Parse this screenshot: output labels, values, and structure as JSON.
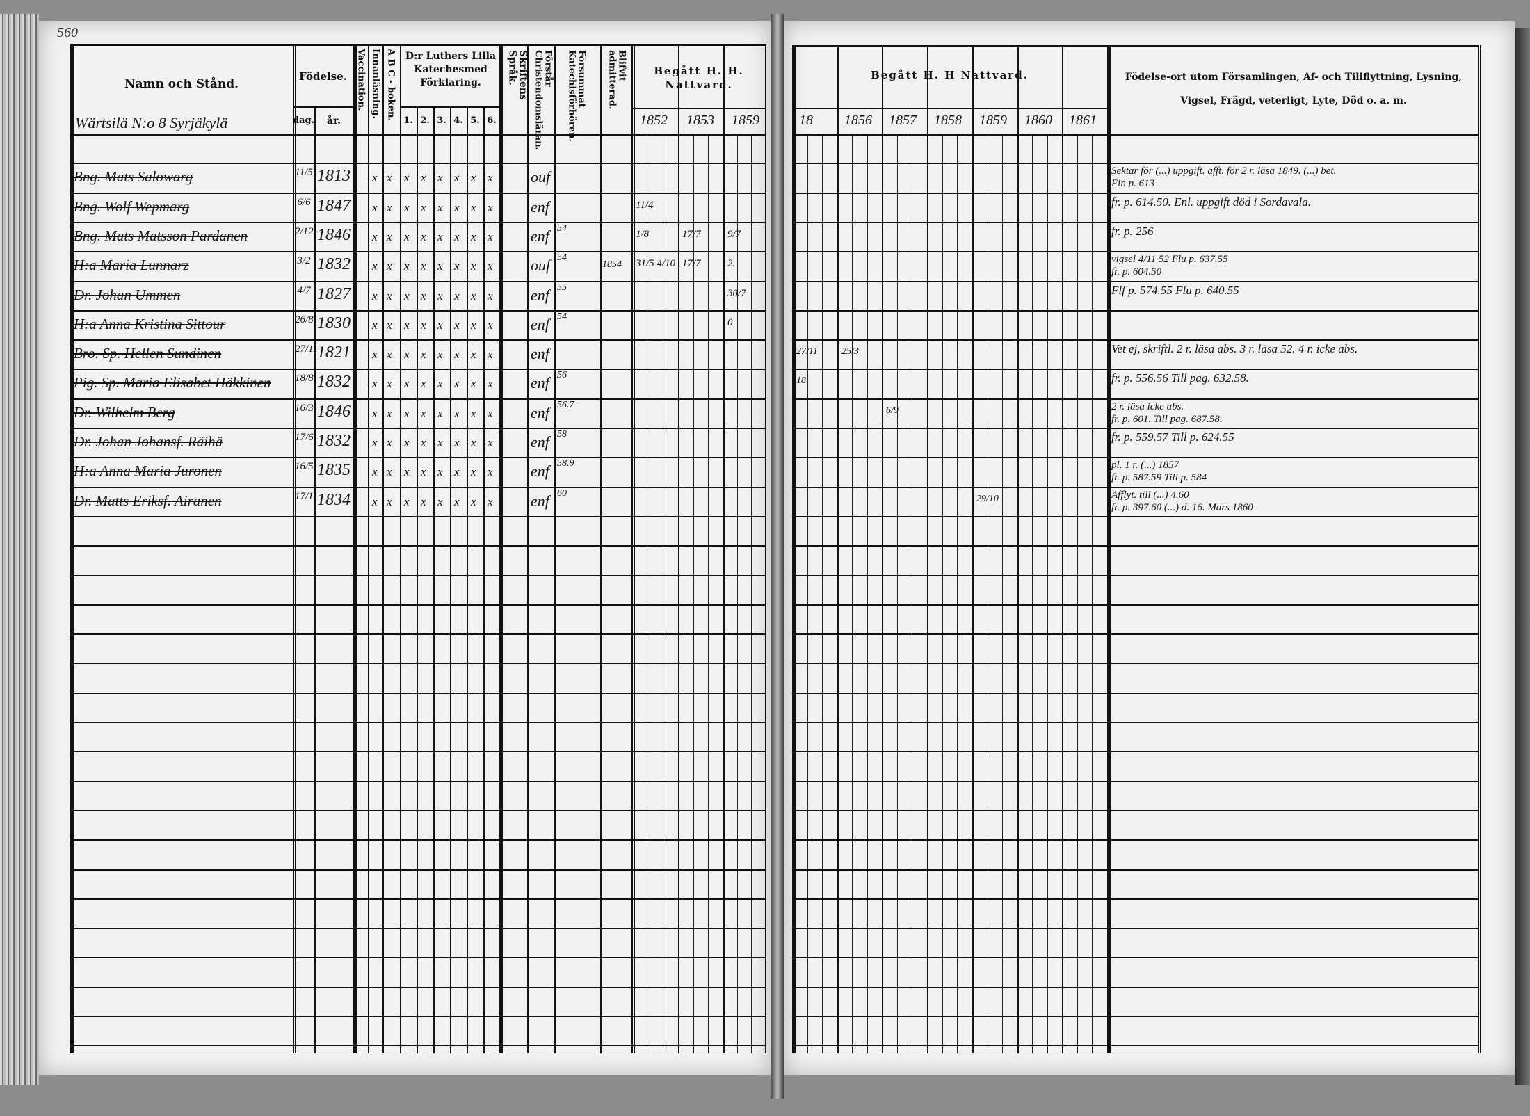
{
  "page_number": "560",
  "left_headers": {
    "name": "Namn och Stånd.",
    "birth": "Födelse.",
    "day": "dag.",
    "year": "år.",
    "vaccination": "Vaccination.",
    "reading": "Innanläsning.",
    "abc": "A B C - boken.",
    "catechism": "D:r Luthers Lilla Katechesmed Förklaring.",
    "catechism_parts": [
      "1.",
      "2.",
      "3.",
      "4.",
      "5.",
      "6."
    ],
    "scripture": "Skriftens Språk.",
    "understands": "Förstår Christendomsläran.",
    "missed": "Försummat Katechisförhören.",
    "admitted": "Blifvit admitterad.",
    "communion": "Begått H. H. Nattvard.",
    "communion_years": [
      "1852",
      "1853",
      "1859"
    ]
  },
  "right_headers": {
    "communion": "Begått H. H Nattvard.",
    "communion_years": [
      "18",
      "1856",
      "1857",
      "1858",
      "1859",
      "1860",
      "1861"
    ],
    "notes": "Födelse-ort utom Församlingen, Af- och Tillflyttning, Lysning,",
    "notes2": "Vigsel, Frägd, veterligt, Lyte, Död o. a. m."
  },
  "village": "Wärtsilä N:o 8 Syrjäkylä",
  "rows": [
    {
      "name": "Bng. Mats Salowarg",
      "day": "11/5",
      "year": "1813",
      "marks": [
        "",
        "x",
        "x",
        "x",
        "x",
        "x",
        "x",
        "x",
        "x"
      ],
      "understands": "ouf",
      "missed": "",
      "admitted": "",
      "begatt": [
        "",
        "",
        ""
      ],
      "right": [
        "",
        "",
        "",
        "",
        "",
        "",
        ""
      ],
      "notes": [
        "Sektar för (...) uppgift. afft. för 2 r. läsa 1849. (...) bet.",
        "Fin p. 613"
      ]
    },
    {
      "name": "Bng. Wolf Wepmarg",
      "day": "6/6",
      "year": "1847",
      "marks": [
        "",
        "x",
        "x",
        "x",
        "x",
        "x",
        "x",
        "x",
        "x"
      ],
      "understands": "enf",
      "missed": "",
      "admitted": "",
      "begatt": [
        "11/4",
        "",
        ""
      ],
      "right": [
        "",
        "",
        "",
        "",
        "",
        "",
        ""
      ],
      "notes": [
        "fr. p. 614.50. Enl. uppgift död i Sordavala."
      ]
    },
    {
      "name": "Bng. Mats Matsson Pardanen",
      "day": "2/12",
      "year": "1846",
      "marks": [
        "",
        "x",
        "x",
        "x",
        "x",
        "x",
        "x",
        "x",
        "x"
      ],
      "understands": "enf",
      "missed": "54",
      "admitted": "",
      "begatt": [
        "1/8",
        "17/7",
        "9/7"
      ],
      "right": [
        "",
        "",
        "",
        "",
        "",
        "",
        ""
      ],
      "notes": [
        "fr. p. 256"
      ]
    },
    {
      "name": "H:a Maria Lunnarz",
      "day": "3/2",
      "year": "1832",
      "marks": [
        "",
        "x",
        "x",
        "x",
        "x",
        "x",
        "x",
        "x",
        "x"
      ],
      "understands": "ouf",
      "missed": "54",
      "admitted": "1854",
      "begatt": [
        "31/5 4/10",
        "17/7",
        "2."
      ],
      "right": [
        "",
        "",
        "",
        "",
        "",
        "",
        ""
      ],
      "notes": [
        "vigsel 4/11 52 Flu p. 637.55",
        "fr. p. 604.50"
      ]
    },
    {
      "name": "Dr. Johan Ummen",
      "day": "4/7",
      "year": "1827",
      "marks": [
        "",
        "x",
        "x",
        "x",
        "x",
        "x",
        "x",
        "x",
        "x"
      ],
      "understands": "enf",
      "missed": "55",
      "admitted": "",
      "begatt": [
        "",
        "",
        "30/7"
      ],
      "right": [
        "",
        "",
        "",
        "",
        "",
        "",
        ""
      ],
      "notes": [
        "Flf p. 574.55 Flu p. 640.55"
      ]
    },
    {
      "name": "H:a Anna Kristina Sittour",
      "day": "26/8",
      "year": "1830",
      "marks": [
        "",
        "x",
        "x",
        "x",
        "x",
        "x",
        "x",
        "x",
        "x"
      ],
      "understands": "enf",
      "missed": "54",
      "admitted": "",
      "begatt": [
        "",
        "",
        "0"
      ],
      "right": [
        "",
        "",
        "",
        "",
        "",
        "",
        ""
      ],
      "notes": [
        ""
      ]
    },
    {
      "name": "Bro. Sp. Hellen Sundinen",
      "day": "27/11",
      "year": "1821",
      "marks": [
        "",
        "x",
        "x",
        "x",
        "x",
        "x",
        "x",
        "x",
        "x"
      ],
      "understands": "enf",
      "missed": "",
      "admitted": "",
      "begatt": [
        "",
        "",
        ""
      ],
      "right": [
        "27/11",
        "25/3",
        "",
        "",
        "",
        "",
        ""
      ],
      "notes": [
        "Vet ej, skriftl. 2 r. läsa abs. 3 r. läsa 52. 4 r. icke abs."
      ]
    },
    {
      "name": "Pig. Sp. Maria Elisabet Häkkinen",
      "day": "18/8",
      "year": "1832",
      "marks": [
        "",
        "x",
        "x",
        "x",
        "x",
        "x",
        "x",
        "x",
        "x"
      ],
      "understands": "enf",
      "missed": "56",
      "admitted": "",
      "begatt": [
        "",
        "",
        ""
      ],
      "right": [
        "18",
        "",
        "",
        "",
        "",
        "",
        ""
      ],
      "notes": [
        "fr. p. 556.56 Till pag. 632.58."
      ]
    },
    {
      "name": "Dr. Wilhelm Berg",
      "day": "16/3",
      "year": "1846",
      "marks": [
        "",
        "x",
        "x",
        "x",
        "x",
        "x",
        "x",
        "x",
        "x"
      ],
      "understands": "enf",
      "missed": "56.7",
      "admitted": "",
      "begatt": [
        "",
        "",
        ""
      ],
      "right": [
        "",
        "",
        "6/9",
        "",
        "",
        "",
        ""
      ],
      "notes": [
        "2 r. läsa icke abs.",
        "fr. p. 601. Till pag. 687.58."
      ]
    },
    {
      "name": "Dr. Johan Johansf. Räihä",
      "day": "17/6",
      "year": "1832",
      "marks": [
        "",
        "x",
        "x",
        "x",
        "x",
        "x",
        "x",
        "x",
        "x"
      ],
      "understands": "enf",
      "missed": "58",
      "admitted": "",
      "begatt": [
        "",
        "",
        ""
      ],
      "right": [
        "",
        "",
        "",
        "",
        "",
        "",
        ""
      ],
      "notes": [
        "fr. p. 559.57 Till p. 624.55"
      ]
    },
    {
      "name": "H:a Anna Maria Juronen",
      "day": "16/5",
      "year": "1835",
      "marks": [
        "",
        "x",
        "x",
        "x",
        "x",
        "x",
        "x",
        "x",
        "x"
      ],
      "understands": "enf",
      "missed": "58.9",
      "admitted": "",
      "begatt": [
        "",
        "",
        ""
      ],
      "right": [
        "",
        "",
        "",
        "",
        "",
        "",
        ""
      ],
      "notes": [
        "pl. 1 r. (...) 1857",
        "fr. p. 587.59 Till p. 584"
      ]
    },
    {
      "name": "Dr. Matts Eriksf. Airanen",
      "day": "17/1",
      "year": "1834",
      "marks": [
        "",
        "x",
        "x",
        "x",
        "x",
        "x",
        "x",
        "x",
        "x"
      ],
      "understands": "enf",
      "missed": "60",
      "admitted": "",
      "begatt": [
        "",
        "",
        ""
      ],
      "right": [
        "",
        "",
        "",
        "",
        "29/10",
        "",
        ""
      ],
      "notes": [
        "Afflyt. till (...) 4.60",
        "fr. p. 397.60 (...) d. 16. Mars 1860"
      ]
    }
  ]
}
